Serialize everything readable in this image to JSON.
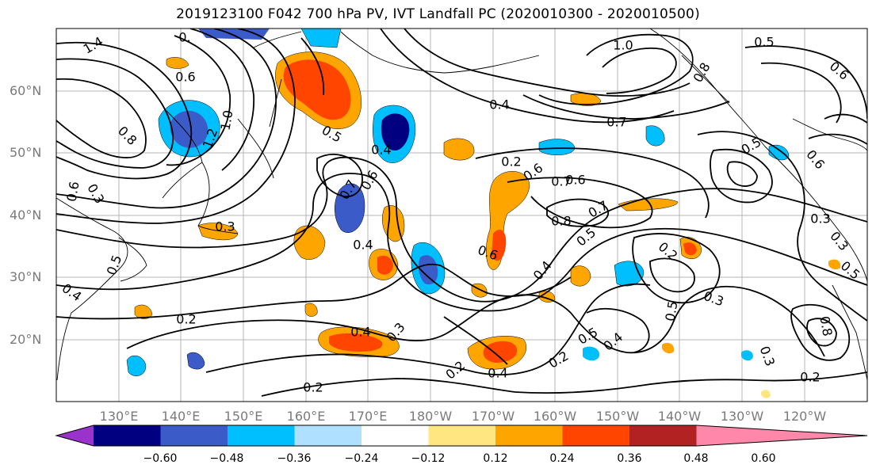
{
  "title": "2019123100 F042 700 hPa PV, IVT Landfall PC (2020010300 - 2020010500)",
  "latitude_labels": [
    "60°N",
    "50°N",
    "40°N",
    "30°N",
    "20°N"
  ],
  "longitude_labels": [
    "130°E",
    "140°E",
    "150°E",
    "160°E",
    "170°E",
    "180°W",
    "170°W",
    "160°W",
    "150°W",
    "140°W",
    "130°W",
    "120°W"
  ],
  "colorbar": {
    "tick_labels": [
      "−0.60",
      "−0.48",
      "−0.36",
      "−0.24",
      "−0.12",
      "0.12",
      "0.24",
      "0.36",
      "0.48",
      "0.60"
    ],
    "colors": [
      "#9a33cc",
      "#000080",
      "#3a5bc8",
      "#00bfff",
      "#b0e0ff",
      "#ffffff",
      "#ffe680",
      "#ffa500",
      "#ff4500",
      "#b22222",
      "#ff88aa"
    ]
  },
  "contour_labels": [
    {
      "text": "1.4"
    },
    {
      "text": "0."
    },
    {
      "text": "0.6"
    },
    {
      "text": "0.8"
    },
    {
      "text": "1.0"
    },
    {
      "text": "1.2"
    },
    {
      "text": "0.5"
    },
    {
      "text": "0.4"
    },
    {
      "text": "0.7"
    },
    {
      "text": "0.6"
    },
    {
      "text": "0.3"
    },
    {
      "text": "0.6"
    },
    {
      "text": "0.3"
    },
    {
      "text": "0.4"
    },
    {
      "text": "0.5"
    },
    {
      "text": "0.4"
    },
    {
      "text": "0.2"
    },
    {
      "text": "0.2"
    },
    {
      "text": "0.4"
    },
    {
      "text": "0.3"
    },
    {
      "text": "0.4"
    },
    {
      "text": "0.2"
    },
    {
      "text": "0.6"
    },
    {
      "text": "0.7"
    },
    {
      "text": "0.6"
    },
    {
      "text": "0.8"
    },
    {
      "text": "0.7"
    },
    {
      "text": "0.5"
    },
    {
      "text": "0.4"
    },
    {
      "text": "0.4"
    },
    {
      "text": "0.2"
    },
    {
      "text": "0.3"
    },
    {
      "text": "0.5"
    },
    {
      "text": "0.5"
    },
    {
      "text": "0.4"
    },
    {
      "text": "0.2"
    },
    {
      "text": "0.2"
    },
    {
      "text": "1.0"
    },
    {
      "text": "0.8"
    },
    {
      "text": "0.5"
    },
    {
      "text": "0.6"
    },
    {
      "text": "0.7"
    },
    {
      "text": "0.5"
    },
    {
      "text": "0.6"
    },
    {
      "text": "0.3"
    },
    {
      "text": "0.3"
    },
    {
      "text": "0.3"
    },
    {
      "text": "0.8"
    },
    {
      "text": "0.2"
    },
    {
      "text": "0.6"
    },
    {
      "text": "0.5"
    }
  ]
}
